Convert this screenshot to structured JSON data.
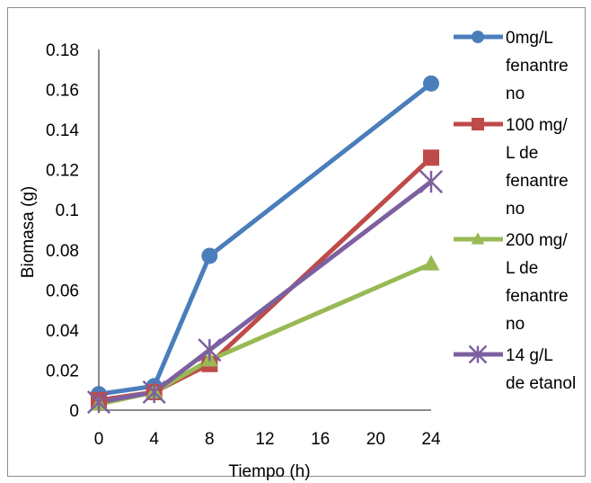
{
  "chart_data": {
    "type": "line",
    "xlabel": "Tiempo (h)",
    "ylabel": "Biomasa (g)",
    "xlim": [
      0,
      24
    ],
    "ylim": [
      0,
      0.18
    ],
    "xticks": [
      "0",
      "4",
      "8",
      "12",
      "16",
      "20",
      "24"
    ],
    "yticks": [
      "0",
      "0.02",
      "0.04",
      "0.06",
      "0.08",
      "0.1",
      "0.12",
      "0.14",
      "0.16",
      "0.18"
    ],
    "x": [
      0,
      4,
      8,
      24
    ],
    "legend_position": "right",
    "series": [
      {
        "name": "0mg/L fenantreno",
        "legend_lines": [
          "0mg/L",
          "fenantre",
          "no"
        ],
        "marker": "circle",
        "color": "#4a7ebb",
        "values": [
          0.008,
          0.012,
          0.077,
          0.163
        ]
      },
      {
        "name": "100 mg/L de fenantreno",
        "legend_lines": [
          "100 mg/",
          "L de",
          "fenantre",
          "no"
        ],
        "marker": "square",
        "color": "#be4b48",
        "values": [
          0.005,
          0.009,
          0.023,
          0.126
        ]
      },
      {
        "name": "200 mg/L de fenantreno",
        "legend_lines": [
          "200 mg/",
          "L de",
          "fenantre",
          "no"
        ],
        "marker": "triangle",
        "color": "#98b954",
        "values": [
          0.003,
          0.009,
          0.025,
          0.073
        ]
      },
      {
        "name": "14 g/L de etanol",
        "legend_lines": [
          "14 g/L",
          "de etanol"
        ],
        "marker": "star",
        "color": "#7d60a0",
        "values": [
          0.004,
          0.009,
          0.03,
          0.114
        ]
      }
    ]
  }
}
